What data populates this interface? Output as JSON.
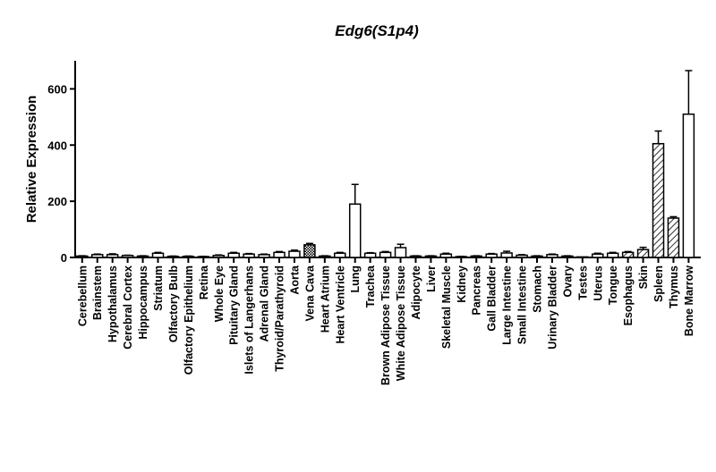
{
  "chart_data": {
    "type": "bar",
    "title": "Edg6(S1p4)",
    "xlabel": "",
    "ylabel": "Relative Expression",
    "ylim": [
      0,
      700
    ],
    "yticks": [
      0,
      200,
      400,
      600
    ],
    "grid": false,
    "legend": "none",
    "categories": [
      "Cerebellum",
      "Brainstem",
      "Hypothalamus",
      "Cerebral Cortex",
      "Hippocampus",
      "Striatum",
      "Olfactory Bulb",
      "Olfactory Epithelium",
      "Retina",
      "Whole Eye",
      "Pituitary Gland",
      "Islets of Langerhans",
      "Adrenal Gland",
      "Thyroid/Parathyroid",
      "Aorta",
      "Vena Cava",
      "Heart Atrium",
      "Heart Ventricle",
      "Lung",
      "Trachea",
      "Brown Adipose Tissue",
      "White Adipose Tissue",
      "Adipocyte",
      "Liver",
      "Skeletal Muscle",
      "Kidney",
      "Pancreas",
      "Gall Bladder",
      "Large Intestine",
      "Small Intestine",
      "Stomach",
      "Urinary Bladder",
      "Ovary",
      "Testes",
      "Uterus",
      "Tongue",
      "Esophagus",
      "Skin",
      "Spleen",
      "Thymus",
      "Bone Marrow"
    ],
    "values": [
      5,
      10,
      10,
      7,
      5,
      15,
      4,
      4,
      3,
      7,
      15,
      12,
      10,
      18,
      22,
      45,
      5,
      15,
      190,
      15,
      18,
      35,
      5,
      5,
      12,
      3,
      5,
      12,
      16,
      8,
      5,
      10,
      5,
      2,
      12,
      15,
      18,
      28,
      405,
      140,
      510
    ],
    "errors": [
      1,
      2,
      3,
      1,
      1,
      3,
      1,
      1,
      1,
      2,
      3,
      2,
      2,
      3,
      4,
      5,
      1,
      3,
      70,
      2,
      3,
      12,
      1,
      1,
      3,
      1,
      1,
      2,
      6,
      2,
      1,
      2,
      1,
      0,
      3,
      3,
      3,
      8,
      45,
      5,
      155
    ],
    "patterns": [
      "plain",
      "plain",
      "plain",
      "plain",
      "plain",
      "plain",
      "plain",
      "plain",
      "plain",
      "plain",
      "plain",
      "plain",
      "plain",
      "plain",
      "plain",
      "cross",
      "plain",
      "plain",
      "plain",
      "plain",
      "plain",
      "plain",
      "plain",
      "plain",
      "plain",
      "plain",
      "plain",
      "plain",
      "plain",
      "plain",
      "plain",
      "plain",
      "plain",
      "plain",
      "plain",
      "plain",
      "hatch",
      "hatch",
      "hatch",
      "hatch",
      "plain"
    ]
  }
}
